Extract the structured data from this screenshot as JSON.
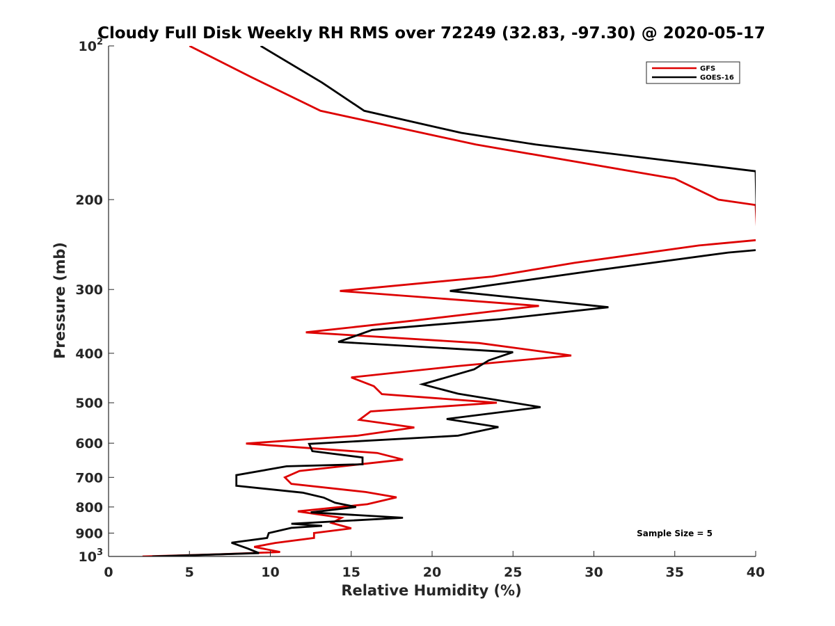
{
  "chart_data": {
    "type": "line",
    "title": "Cloudy Full Disk Weekly RH RMS over 72249 (32.83, -97.30) @ 2020-05-17",
    "xlabel": "Relative Humidity (%)",
    "ylabel": "Pressure (mb)",
    "xlim": [
      0,
      40
    ],
    "ylim": [
      100,
      1000
    ],
    "yscale": "log",
    "y_reversed": true,
    "grid": false,
    "legend_position": "top-right",
    "x_ticks": [
      0,
      5,
      10,
      15,
      20,
      25,
      30,
      35,
      40
    ],
    "y_ticks": [
      {
        "value": 100,
        "label": "10",
        "sup": "2"
      },
      {
        "value": 200,
        "label": "200",
        "sup": ""
      },
      {
        "value": 300,
        "label": "300",
        "sup": ""
      },
      {
        "value": 400,
        "label": "400",
        "sup": ""
      },
      {
        "value": 500,
        "label": "500",
        "sup": ""
      },
      {
        "value": 600,
        "label": "600",
        "sup": ""
      },
      {
        "value": 700,
        "label": "700",
        "sup": ""
      },
      {
        "value": 800,
        "label": "800",
        "sup": ""
      },
      {
        "value": 900,
        "label": "900",
        "sup": ""
      },
      {
        "value": 1000,
        "label": "10",
        "sup": "3"
      }
    ],
    "annotation": "Sample Size = 5",
    "series": [
      {
        "name": "GFS",
        "color": "#dd0000",
        "points": [
          [
            5.0,
            100
          ],
          [
            8.8,
            115
          ],
          [
            13.1,
            134
          ],
          [
            22.7,
            156
          ],
          [
            35.0,
            182
          ],
          [
            37.7,
            200
          ],
          [
            40.0,
            205
          ],
          [
            40.1,
            240
          ],
          [
            36.5,
            246
          ],
          [
            28.8,
            266
          ],
          [
            23.7,
            283
          ],
          [
            14.3,
            302
          ],
          [
            26.6,
            323
          ],
          [
            18.9,
            345
          ],
          [
            12.2,
            364
          ],
          [
            22.9,
            382
          ],
          [
            28.6,
            404
          ],
          [
            21.5,
            424
          ],
          [
            15.0,
            446
          ],
          [
            16.4,
            464
          ],
          [
            16.9,
            481
          ],
          [
            24.0,
            500
          ],
          [
            16.2,
            520
          ],
          [
            15.5,
            540
          ],
          [
            18.9,
            559
          ],
          [
            15.4,
            580
          ],
          [
            8.5,
            601
          ],
          [
            16.6,
            627
          ],
          [
            18.2,
            646
          ],
          [
            11.8,
            680
          ],
          [
            10.9,
            700
          ],
          [
            11.3,
            721
          ],
          [
            15.9,
            748
          ],
          [
            17.8,
            766
          ],
          [
            16.0,
            790
          ],
          [
            11.7,
            816
          ],
          [
            14.4,
            840
          ],
          [
            13.8,
            860
          ],
          [
            15.0,
            881
          ],
          [
            12.7,
            900
          ],
          [
            12.7,
            920
          ],
          [
            10.3,
            941
          ],
          [
            9.0,
            958
          ],
          [
            10.6,
            980
          ],
          [
            7.0,
            990
          ],
          [
            2.1,
            1000
          ]
        ]
      },
      {
        "name": "GOES-16",
        "color": "#000000",
        "points": [
          [
            9.4,
            100
          ],
          [
            13.2,
            118
          ],
          [
            15.8,
            134
          ],
          [
            21.8,
            148
          ],
          [
            26.4,
            156
          ],
          [
            40.0,
            176
          ],
          [
            40.1,
            251
          ],
          [
            38.3,
            254
          ],
          [
            30.2,
            275
          ],
          [
            21.1,
            302
          ],
          [
            30.9,
            325
          ],
          [
            24.2,
            343
          ],
          [
            16.3,
            360
          ],
          [
            14.2,
            380
          ],
          [
            25.0,
            398
          ],
          [
            23.5,
            413
          ],
          [
            22.6,
            430
          ],
          [
            19.4,
            460
          ],
          [
            21.6,
            480
          ],
          [
            26.7,
            510
          ],
          [
            20.9,
            538
          ],
          [
            24.1,
            558
          ],
          [
            21.6,
            580
          ],
          [
            12.4,
            602
          ],
          [
            12.6,
            622
          ],
          [
            15.7,
            640
          ],
          [
            15.7,
            660
          ],
          [
            11.0,
            666
          ],
          [
            7.9,
            693
          ],
          [
            7.9,
            727
          ],
          [
            12.0,
            750
          ],
          [
            13.3,
            767
          ],
          [
            14.0,
            785
          ],
          [
            15.3,
            800
          ],
          [
            12.5,
            820
          ],
          [
            18.2,
            840
          ],
          [
            11.3,
            863
          ],
          [
            13.2,
            871
          ],
          [
            11.3,
            879
          ],
          [
            9.9,
            900
          ],
          [
            9.8,
            920
          ],
          [
            7.6,
            940
          ],
          [
            8.6,
            965
          ],
          [
            9.3,
            985
          ],
          [
            2.7,
            1000
          ]
        ]
      }
    ]
  }
}
